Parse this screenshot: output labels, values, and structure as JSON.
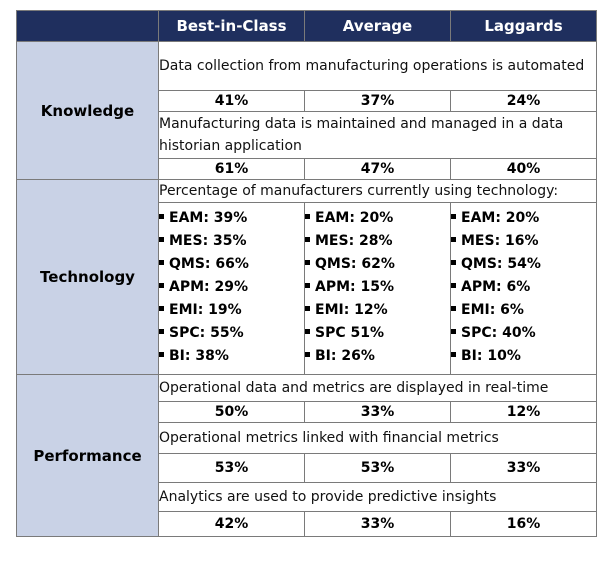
{
  "header": {
    "columns": [
      "Best-in-Class",
      "Average",
      "Laggards"
    ]
  },
  "knowledge": {
    "label": "Knowledge",
    "rows": [
      {
        "metric": "Data collection from manufacturing operations is automated",
        "values": [
          "41%",
          "37%",
          "24%"
        ]
      },
      {
        "metric": "Manufacturing data is maintained and managed in a data historian application",
        "values": [
          "61%",
          "47%",
          "40%"
        ]
      }
    ]
  },
  "technology": {
    "label": "Technology",
    "metric": "Percentage of manufacturers currently using technology:",
    "lists": [
      [
        "EAM: 39%",
        "MES: 35%",
        "QMS: 66%",
        "APM: 29%",
        "EMI: 19%",
        "SPC: 55%",
        "BI: 38%"
      ],
      [
        "EAM: 20%",
        "MES: 28%",
        "QMS: 62%",
        "APM: 15%",
        "EMI: 12%",
        "SPC 51%",
        "BI: 26%"
      ],
      [
        "EAM: 20%",
        "MES: 16%",
        "QMS: 54%",
        "APM: 6%",
        "EMI: 6%",
        "SPC: 40%",
        "BI: 10%"
      ]
    ]
  },
  "performance": {
    "label": "Performance",
    "rows": [
      {
        "metric": "Operational data and metrics are displayed in real-time",
        "values": [
          "50%",
          "33%",
          "12%"
        ]
      },
      {
        "metric": "Operational metrics linked with financial metrics",
        "values": [
          "53%",
          "53%",
          "33%"
        ]
      },
      {
        "metric": "Analytics are used to provide predictive insights",
        "values": [
          "42%",
          "33%",
          "16%"
        ]
      }
    ]
  }
}
